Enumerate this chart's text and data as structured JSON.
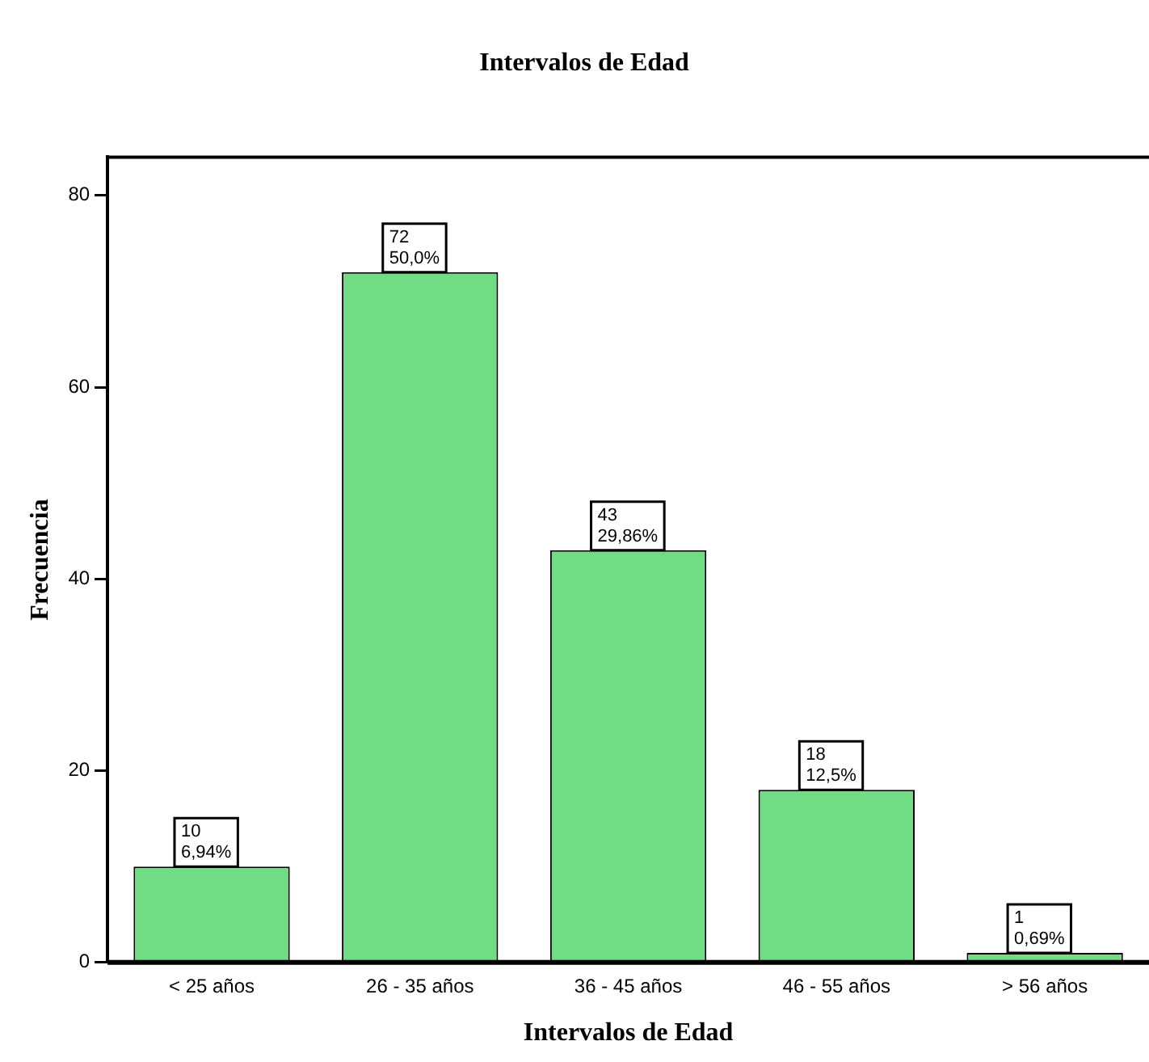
{
  "chart_data": {
    "type": "bar",
    "title": "Intervalos de Edad",
    "xlabel": "Intervalos de Edad",
    "ylabel": "Frecuencia",
    "categories": [
      "< 25 años",
      "26 - 35 años",
      "36 - 45 años",
      "46 - 55 años",
      "> 56 años"
    ],
    "values": [
      10,
      72,
      43,
      18,
      1
    ],
    "value_labels": [
      "10\n6,94%",
      "72\n50,0%",
      "43\n29,86%",
      "18\n12,5%",
      "1\n0,69%"
    ],
    "color": "#70dc84",
    "ylim": [
      0,
      84
    ],
    "yticks": [
      0,
      20,
      40,
      60,
      80
    ],
    "grid": false,
    "legend": false
  }
}
